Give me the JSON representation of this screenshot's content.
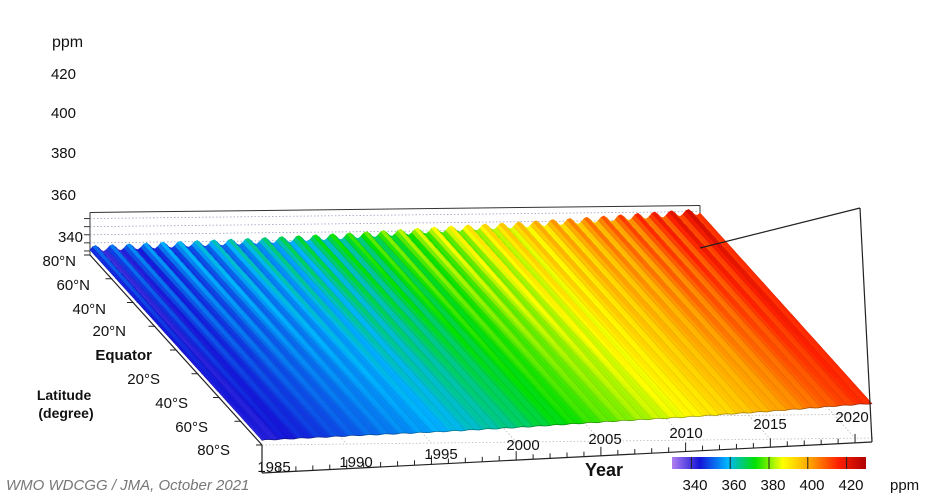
{
  "chart_data": {
    "type": "surface",
    "z_unit": "ppm",
    "z_ticks": [
      "340",
      "360",
      "380",
      "400",
      "420"
    ],
    "z_tick_values": [
      340,
      360,
      380,
      400,
      420
    ],
    "x_title": "Year",
    "x_ticks": [
      "1985",
      "1990",
      "1995",
      "2000",
      "2005",
      "2010",
      "2015",
      "2020"
    ],
    "x_tick_values": [
      1985,
      1990,
      1995,
      2000,
      2005,
      2010,
      2015,
      2020
    ],
    "y_title_lines": [
      "Latitude",
      "(degree)"
    ],
    "y_ticks": [
      "80°N",
      "60°N",
      "40°N",
      "20°N",
      "Equator",
      "20°S",
      "40°S",
      "60°S",
      "80°S"
    ],
    "y_tick_values": [
      80,
      60,
      40,
      20,
      0,
      -20,
      -40,
      -60,
      -80
    ],
    "xlim": [
      1985,
      2021
    ],
    "zlim": [
      330,
      430
    ],
    "series": [
      {
        "name": "",
        "latitude": 80,
        "points": [
          [
            1985,
            345
          ],
          [
            1990,
            353
          ],
          [
            1995,
            360
          ],
          [
            2000,
            369
          ],
          [
            2005,
            381
          ],
          [
            2010,
            391
          ],
          [
            2015,
            403
          ],
          [
            2020,
            417
          ],
          [
            2021,
            419
          ]
        ]
      },
      {
        "name": "",
        "latitude": -80,
        "points": [
          [
            1985,
            342
          ],
          [
            1990,
            350
          ],
          [
            1995,
            357
          ],
          [
            2000,
            366
          ],
          [
            2005,
            377
          ],
          [
            2010,
            387
          ],
          [
            2015,
            399
          ],
          [
            2020,
            413
          ],
          [
            2021,
            415
          ]
        ]
      }
    ],
    "seasonal_amplitude_north_ppm": 8,
    "seasonal_amplitude_south_ppm": 1,
    "colorbar": {
      "ticks": [
        "340",
        "360",
        "380",
        "400",
        "420"
      ],
      "tick_values": [
        340,
        360,
        380,
        400,
        420
      ],
      "unit": "ppm",
      "range": [
        330,
        430
      ],
      "colors": [
        "#b07ff0",
        "#1515d8",
        "#00b4ff",
        "#00e000",
        "#ffff00",
        "#ffa000",
        "#ff2000",
        "#b00000"
      ]
    },
    "grid": true
  },
  "credit": "WMO WDCGG / JMA, October 2021"
}
